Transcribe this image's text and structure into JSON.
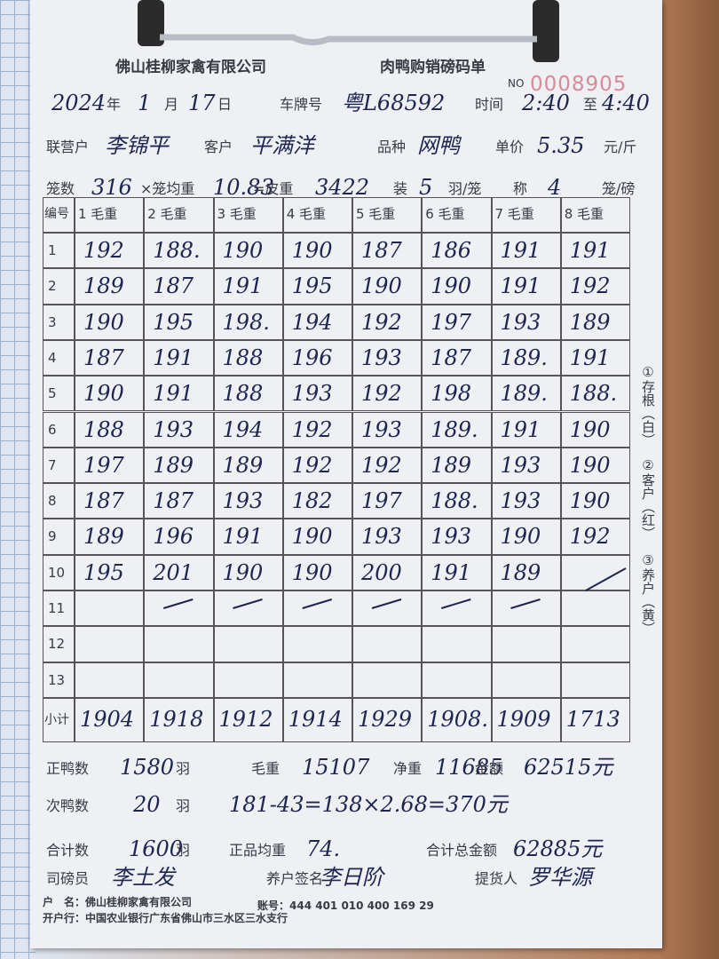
{
  "header": {
    "company": "佛山桂柳家禽有限公司",
    "title": "肉鸭购销磅码单",
    "serial_prefix": "NO",
    "serial": "0008905"
  },
  "line1": [
    "2024",
    "年",
    "1",
    "月",
    "17",
    "日",
    "车牌号",
    "粤L68592",
    "时间",
    "2:40",
    "至",
    "4:40"
  ],
  "line2": [
    "联营户",
    "李锦平",
    "客户",
    "平满洋",
    "品种",
    "网鸭",
    "单价",
    "5.35",
    "元/斤"
  ],
  "line3": [
    "笼数",
    "316",
    "×笼均重",
    "10.83",
    "=皮重",
    "3422",
    "装",
    "5",
    "羽/笼",
    "称",
    "4",
    "笼/磅"
  ],
  "table": {
    "corner": "编号",
    "columns": [
      "1 毛重",
      "2 毛重",
      "3 毛重",
      "4 毛重",
      "5 毛重",
      "6 毛重",
      "7 毛重",
      "8 毛重"
    ],
    "rows": [
      {
        "label": "1",
        "cells": [
          "192",
          "188.",
          "190",
          "190",
          "187",
          "186",
          "191",
          "191"
        ]
      },
      {
        "label": "2",
        "cells": [
          "189",
          "187",
          "191",
          "195",
          "190",
          "190",
          "191",
          "192"
        ]
      },
      {
        "label": "3",
        "cells": [
          "190",
          "195",
          "198.",
          "194",
          "192",
          "197",
          "193",
          "189"
        ]
      },
      {
        "label": "4",
        "cells": [
          "187",
          "191",
          "188",
          "196",
          "193",
          "187",
          "189.",
          "191"
        ]
      },
      {
        "label": "5",
        "cells": [
          "190",
          "191",
          "188",
          "193",
          "192",
          "198",
          "189.",
          "188."
        ]
      },
      {
        "label": "6",
        "cells": [
          "188",
          "193",
          "194",
          "192",
          "193",
          "189.",
          "191",
          "190"
        ]
      },
      {
        "label": "7",
        "cells": [
          "197",
          "189",
          "189",
          "192",
          "192",
          "189",
          "193",
          "190"
        ]
      },
      {
        "label": "8",
        "cells": [
          "187",
          "187",
          "193",
          "182",
          "197",
          "188.",
          "193",
          "190"
        ]
      },
      {
        "label": "9",
        "cells": [
          "189",
          "196",
          "191",
          "190",
          "193",
          "193",
          "190",
          "192"
        ]
      },
      {
        "label": "10",
        "cells": [
          "195",
          "201",
          "190",
          "190",
          "200",
          "191",
          "189"
        ]
      },
      {
        "label": "11"
      },
      {
        "label": "12"
      },
      {
        "label": "13"
      }
    ],
    "subtotal": {
      "label": "小计",
      "cells": [
        "1904",
        "1918",
        "1912",
        "1914",
        "1929",
        "1908.",
        "1909",
        "1713"
      ]
    }
  },
  "sum1": [
    "正鸭数",
    "1580",
    "羽",
    "毛重",
    "15107",
    "净重",
    "11685",
    "金额",
    "62515元"
  ],
  "sum2": [
    "次鸭数",
    "20",
    "羽",
    "181-43=138×2.68=370元"
  ],
  "sum3": [
    "合计数",
    "1600",
    "羽",
    "正品均重",
    "74.",
    "合计总金额",
    "62885元"
  ],
  "sum4": [
    "司磅员",
    "李土发",
    "养户签名",
    "李日阶",
    "提货人",
    "罗华源"
  ],
  "footer": [
    "户　名：佛山桂柳家禽有限公司",
    "账号：444 401 010 400 169 29",
    "开户行：中国农业银行广东省佛山市三水区三水支行"
  ],
  "side": [
    "①存根（白）",
    "②客户（红）",
    "③养户（黄）"
  ]
}
